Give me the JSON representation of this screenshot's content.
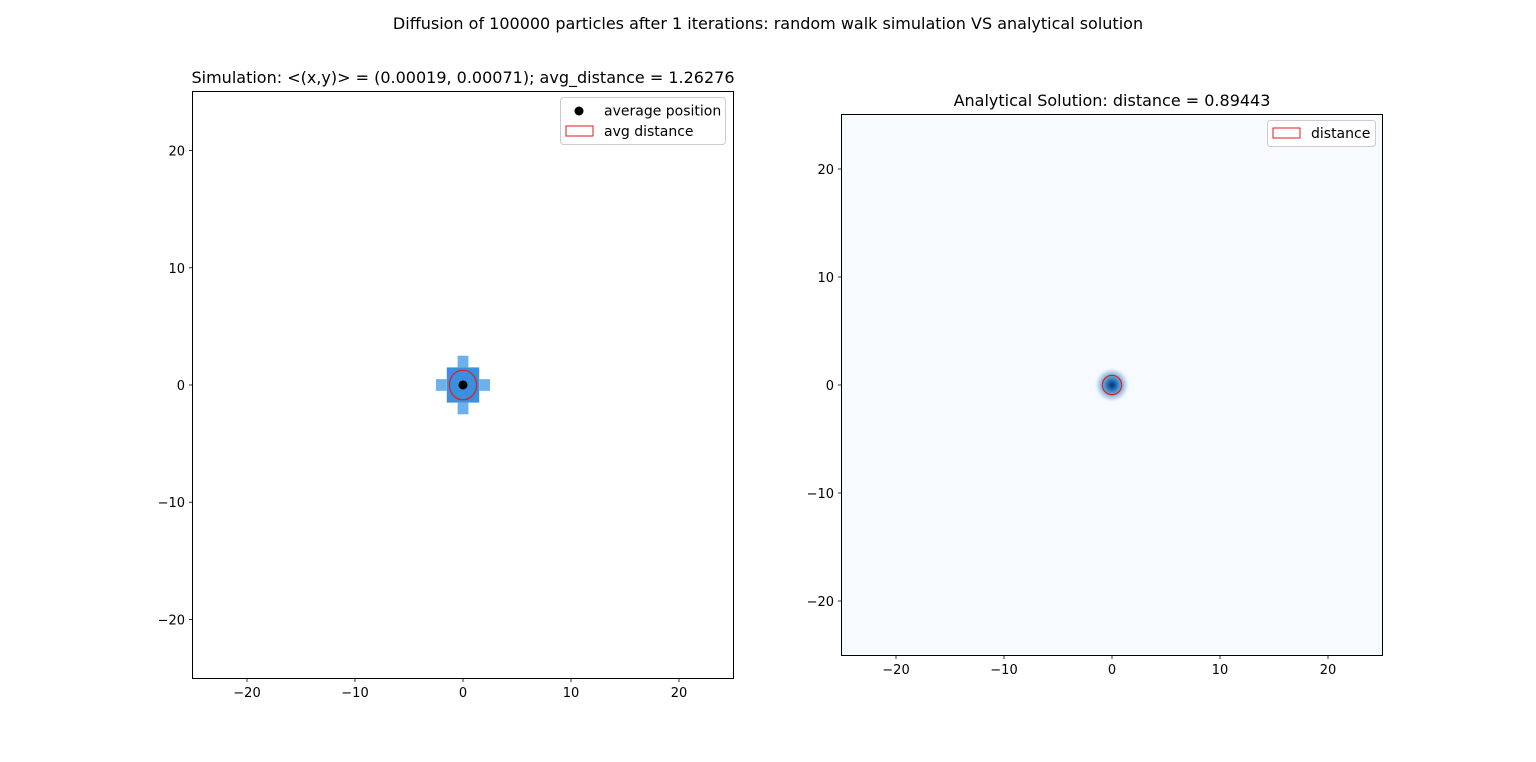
{
  "figure": {
    "suptitle": "Diffusion of 100000 particles after 1 iterations: random walk simulation VS analytical solution"
  },
  "chart_data": [
    {
      "type": "heatmap",
      "title": "Simulation: <(x,y)> = (0.00019, 0.00071); avg_distance = 1.26276",
      "xlabel": "",
      "ylabel": "",
      "xlim": [
        -25,
        25
      ],
      "ylim": [
        -25,
        25
      ],
      "xticks": [
        -20,
        -10,
        0,
        10,
        20
      ],
      "yticks": [
        -20,
        -10,
        0,
        10,
        20
      ],
      "xtick_labels": [
        "−20",
        "−10",
        "0",
        "10",
        "20"
      ],
      "ytick_labels": [
        "−20",
        "−10",
        "0",
        "10",
        "20"
      ],
      "grid": false,
      "legend_position": "top-right",
      "legend": [
        "average position",
        "avg distance"
      ],
      "cells": [
        {
          "x0": -1.5,
          "x1": 1.5,
          "y0": -1.5,
          "y1": 1.5,
          "level": "high"
        },
        {
          "x0": -0.5,
          "x1": 0.5,
          "y0": 1.5,
          "y1": 2.5,
          "level": "low"
        },
        {
          "x0": -0.5,
          "x1": 0.5,
          "y0": -2.5,
          "y1": -1.5,
          "level": "low"
        },
        {
          "x0": -2.5,
          "x1": -1.5,
          "y0": -0.5,
          "y1": 0.5,
          "level": "low"
        },
        {
          "x0": 1.5,
          "x1": 2.5,
          "y0": -0.5,
          "y1": 0.5,
          "level": "low"
        }
      ],
      "cell_colors": {
        "high": "#3a90de",
        "low": "#6cb1ec"
      },
      "average_position": [
        0.00019,
        0.00071
      ],
      "avg_distance": 1.26276,
      "circle_color": "#e31a1c",
      "marker_color": "#000000"
    },
    {
      "type": "heatmap",
      "title": "Analytical Solution: distance = 0.89443",
      "xlabel": "",
      "ylabel": "",
      "xlim": [
        -25,
        25
      ],
      "ylim": [
        -25,
        25
      ],
      "xticks": [
        -20,
        -10,
        0,
        10,
        20
      ],
      "yticks": [
        -20,
        -10,
        0,
        10,
        20
      ],
      "xtick_labels": [
        "−20",
        "−10",
        "0",
        "10",
        "20"
      ],
      "ytick_labels": [
        "−20",
        "−10",
        "0",
        "10",
        "20"
      ],
      "grid": false,
      "legend_position": "top-right",
      "legend": [
        "distance"
      ],
      "colormap": "Blues",
      "background_color": "#f7fbff",
      "center": [
        0,
        0
      ],
      "distance": 0.89443,
      "circle_color": "#e31a1c"
    }
  ]
}
